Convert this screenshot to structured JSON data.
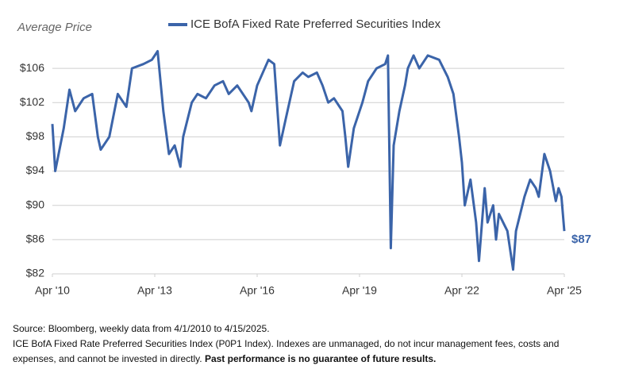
{
  "chart_data": {
    "type": "line",
    "y_label": "Average Price",
    "series": [
      {
        "name": "ICE BofA Fixed Rate Preferred Securities Index",
        "color": "#3b64a9",
        "values": [
          99.5,
          94,
          99,
          103.5,
          101,
          102.5,
          103,
          98,
          96.5,
          98,
          103,
          101.5,
          106,
          106.5,
          107,
          108,
          101,
          96,
          97,
          94.5,
          98,
          102,
          103,
          102.5,
          104,
          104.5,
          103,
          104,
          102,
          101,
          104,
          107,
          106.5,
          97,
          100,
          103,
          104.5,
          105.5,
          105,
          105.5,
          104,
          102,
          102.5,
          101,
          98,
          94.5,
          99,
          102,
          104.5,
          106,
          106.5,
          107.5,
          85,
          97,
          101,
          104,
          106,
          107.5,
          106,
          107.5,
          107,
          105,
          103,
          98,
          95,
          90,
          93,
          88,
          83.5,
          92,
          88,
          90,
          86,
          89,
          87,
          82.5,
          87,
          91,
          93,
          92,
          91,
          96,
          94,
          90.5,
          92,
          91,
          87
        ]
      }
    ],
    "x": [
      "2010-04",
      "2010-05",
      "2010-08",
      "2010-10",
      "2010-12",
      "2011-03",
      "2011-06",
      "2011-08",
      "2011-09",
      "2011-12",
      "2012-03",
      "2012-06",
      "2012-08",
      "2012-12",
      "2013-03",
      "2013-05",
      "2013-07",
      "2013-09",
      "2013-11",
      "2014-01",
      "2014-02",
      "2014-05",
      "2014-07",
      "2014-10",
      "2015-01",
      "2015-04",
      "2015-06",
      "2015-09",
      "2016-01",
      "2016-02",
      "2016-04",
      "2016-08",
      "2016-10",
      "2016-12",
      "2017-02",
      "2017-04",
      "2017-05",
      "2017-08",
      "2017-10",
      "2018-01",
      "2018-03",
      "2018-05",
      "2018-07",
      "2018-10",
      "2018-11",
      "2018-12",
      "2019-02",
      "2019-05",
      "2019-07",
      "2019-10",
      "2020-01",
      "2020-02",
      "2020-03",
      "2020-04",
      "2020-06",
      "2020-08",
      "2020-09",
      "2020-11",
      "2021-01",
      "2021-04",
      "2021-08",
      "2021-11",
      "2022-01",
      "2022-03",
      "2022-04",
      "2022-05",
      "2022-07",
      "2022-09",
      "2022-10",
      "2022-12",
      "2023-01",
      "2023-03",
      "2023-04",
      "2023-05",
      "2023-08",
      "2023-10",
      "2023-11",
      "2024-02",
      "2024-04",
      "2024-06",
      "2024-07",
      "2024-09",
      "2024-11",
      "2025-01",
      "2025-02",
      "2025-03",
      "2025-04"
    ],
    "last_value_label": "$87",
    "xlim": [
      "2010-04",
      "2025-04"
    ],
    "xticks": [
      {
        "value": "2010-04",
        "label": "Apr '10"
      },
      {
        "value": "2013-04",
        "label": "Apr '13"
      },
      {
        "value": "2016-04",
        "label": "Apr '16"
      },
      {
        "value": "2019-04",
        "label": "Apr '19"
      },
      {
        "value": "2022-04",
        "label": "Apr '22"
      },
      {
        "value": "2025-04",
        "label": "Apr '25"
      }
    ],
    "ylim": [
      82,
      108
    ],
    "yticks": [
      {
        "value": 82,
        "label": "$82"
      },
      {
        "value": 86,
        "label": "$86"
      },
      {
        "value": 90,
        "label": "$90"
      },
      {
        "value": 94,
        "label": "$94"
      },
      {
        "value": 98,
        "label": "$98"
      },
      {
        "value": 102,
        "label": "$102"
      },
      {
        "value": 106,
        "label": "$106"
      }
    ],
    "grid": true
  },
  "footer": {
    "source": "Source: Bloomberg, weekly data from 4/1/2010 to 4/15/2025.",
    "note": "ICE BofA Fixed Rate Preferred Securities Index (P0P1 Index). Indexes are unmanaged, do not incur management fees, costs and expenses, and cannot be invested in directly.",
    "disclaimer": "Past performance is no guarantee of future results."
  }
}
